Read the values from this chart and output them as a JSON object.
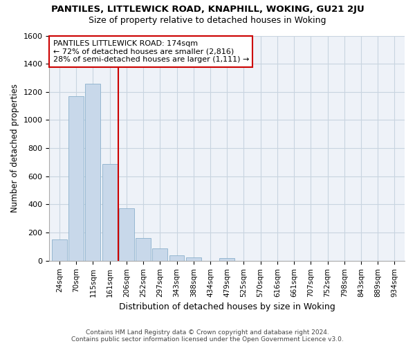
{
  "title_line1": "PANTILES, LITTLEWICK ROAD, KNAPHILL, WOKING, GU21 2JU",
  "title_line2": "Size of property relative to detached houses in Woking",
  "xlabel": "Distribution of detached houses by size in Woking",
  "ylabel": "Number of detached properties",
  "bar_values": [
    150,
    1170,
    1260,
    690,
    375,
    160,
    90,
    40,
    25,
    0,
    20,
    0,
    0,
    0,
    0,
    0,
    0,
    0,
    0,
    0,
    0
  ],
  "bar_labels": [
    "24sqm",
    "70sqm",
    "115sqm",
    "161sqm",
    "206sqm",
    "252sqm",
    "297sqm",
    "343sqm",
    "388sqm",
    "434sqm",
    "479sqm",
    "525sqm",
    "570sqm",
    "616sqm",
    "661sqm",
    "707sqm",
    "752sqm",
    "798sqm",
    "843sqm",
    "889sqm",
    "934sqm"
  ],
  "bar_color": "#c8d8ea",
  "bar_edgecolor": "#8ab0cc",
  "grid_color": "#c8d4e0",
  "vline_x": 3.5,
  "vline_color": "#cc0000",
  "annotation_text": "PANTILES LITTLEWICK ROAD: 174sqm\n← 72% of detached houses are smaller (2,816)\n28% of semi-detached houses are larger (1,111) →",
  "annotation_box_color": "#cc0000",
  "annotation_bg": "#ffffff",
  "ylim": [
    0,
    1600
  ],
  "yticks": [
    0,
    200,
    400,
    600,
    800,
    1000,
    1200,
    1400,
    1600
  ],
  "footnote": "Contains HM Land Registry data © Crown copyright and database right 2024.\nContains public sector information licensed under the Open Government Licence v3.0.",
  "fig_bg": "#ffffff",
  "axes_bg": "#eef2f8"
}
